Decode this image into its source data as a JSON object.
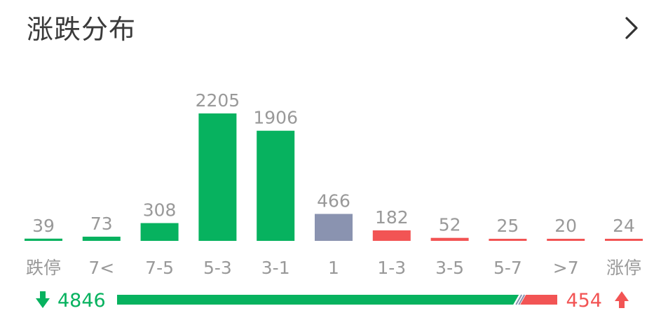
{
  "header": {
    "title": "涨跌分布",
    "more_icon": "chevron-right-icon"
  },
  "colors": {
    "down": "#07b25f",
    "flat": "#8a93b0",
    "up": "#f25454",
    "value_text": "#999999",
    "label_text": "#999999"
  },
  "chart_data": {
    "type": "bar",
    "title": "涨跌分布",
    "xlabel": "",
    "ylabel": "",
    "categories": [
      "跌停",
      "7<",
      "7-5",
      "5-3",
      "3-1",
      "1",
      "1-3",
      "3-5",
      "5-7",
      ">7",
      "涨停"
    ],
    "values": [
      39,
      73,
      308,
      2205,
      1906,
      466,
      182,
      52,
      25,
      20,
      24
    ],
    "bar_color_keys": [
      "down",
      "down",
      "down",
      "down",
      "down",
      "flat",
      "up",
      "up",
      "up",
      "up",
      "up"
    ],
    "ylim": [
      0,
      2205
    ],
    "grid": false,
    "legend": "none"
  },
  "summary": {
    "down_icon": "arrow-down-icon",
    "down_count": "4846",
    "up_count": "454",
    "up_icon": "arrow-up-icon"
  }
}
